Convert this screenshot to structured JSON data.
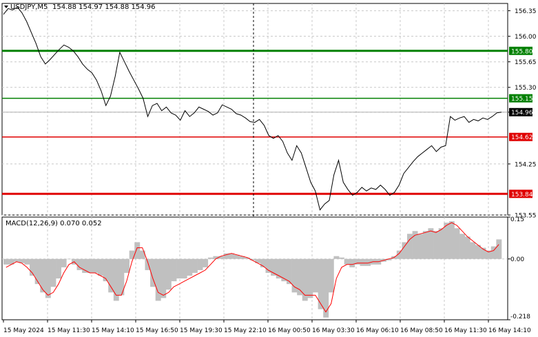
{
  "header": {
    "symbol_timeframe": "USDJPY,M5",
    "ohlc": "154.88 154.97 154.88 154.96"
  },
  "chart_data": [
    {
      "type": "line",
      "title": "USDJPY,M5",
      "ylim": [
        153.55,
        156.45
      ],
      "y_ticks": [
        "156.35",
        "156.00",
        "155.65",
        "155.30",
        "154.96",
        "154.25",
        "153.55"
      ],
      "x_ticks": [
        "15 May 2024",
        "15 May 11:30",
        "15 May 14:10",
        "15 May 16:50",
        "15 May 19:30",
        "15 May 22:10",
        "16 May 00:50",
        "16 May 03:30",
        "16 May 06:10",
        "16 May 08:50",
        "16 May 11:30",
        "16 May 14:10"
      ],
      "current_price": "154.96",
      "levels": [
        {
          "value": 155.8,
          "label": "155.80",
          "color": "#008000"
        },
        {
          "value": 155.15,
          "label": "155.15",
          "color": "#008000"
        },
        {
          "value": 154.62,
          "label": "154.62",
          "color": "#e00000"
        },
        {
          "value": 153.84,
          "label": "153.84",
          "color": "#e00000"
        }
      ],
      "series": [
        {
          "color": "#000000",
          "values": [
            156.3,
            156.38,
            156.36,
            156.4,
            156.32,
            156.2,
            156.05,
            155.9,
            155.72,
            155.62,
            155.68,
            155.75,
            155.82,
            155.88,
            155.85,
            155.8,
            155.72,
            155.62,
            155.55,
            155.5,
            155.4,
            155.25,
            155.05,
            155.18,
            155.45,
            155.78,
            155.65,
            155.52,
            155.4,
            155.28,
            155.15,
            154.9,
            155.05,
            155.08,
            154.98,
            155.03,
            154.95,
            154.92,
            154.85,
            154.98,
            154.9,
            154.95,
            155.03,
            155.0,
            154.97,
            154.92,
            154.95,
            155.06,
            155.03,
            155.0,
            154.94,
            154.92,
            154.88,
            154.83,
            154.82,
            154.86,
            154.78,
            154.64,
            154.6,
            154.64,
            154.56,
            154.4,
            154.3,
            154.5,
            154.4,
            154.2,
            154.0,
            153.88,
            153.62,
            153.7,
            153.75,
            154.1,
            154.3,
            154.0,
            153.9,
            153.82,
            153.86,
            153.93,
            153.88,
            153.92,
            153.9,
            153.96,
            153.9,
            153.82,
            153.86,
            153.96,
            154.12,
            154.2,
            154.28,
            154.35,
            154.4,
            154.45,
            154.5,
            154.42,
            154.48,
            154.5,
            154.9,
            154.85,
            154.88,
            154.9,
            154.82,
            154.86,
            154.84,
            154.88,
            154.86,
            154.9,
            154.95,
            154.96
          ]
        }
      ]
    },
    {
      "type": "bar",
      "title": "MACD(12,26,9) 0.070 0.052",
      "ylim": [
        -0.218,
        0.15
      ],
      "y_ticks": [
        "0.15",
        "0.00",
        "-0.218"
      ],
      "series": [
        {
          "name": "MACD",
          "color": "#c0c0c0",
          "values": [
            -0.02,
            -0.02,
            -0.01,
            -0.015,
            -0.02,
            -0.06,
            -0.09,
            -0.12,
            -0.14,
            -0.1,
            -0.07,
            -0.03,
            0.0,
            -0.02,
            -0.04,
            -0.05,
            -0.05,
            -0.05,
            -0.06,
            -0.08,
            -0.12,
            -0.15,
            -0.13,
            -0.05,
            0.03,
            0.06,
            0.03,
            -0.04,
            -0.1,
            -0.15,
            -0.14,
            -0.11,
            -0.08,
            -0.07,
            -0.07,
            -0.06,
            -0.05,
            -0.04,
            -0.03,
            0.005,
            0.01,
            0.01,
            0.02,
            0.02,
            0.015,
            0.01,
            0.005,
            -0.005,
            -0.015,
            -0.03,
            -0.05,
            -0.06,
            -0.07,
            -0.08,
            -0.09,
            -0.12,
            -0.13,
            -0.15,
            -0.14,
            -0.12,
            -0.18,
            -0.21,
            -0.12,
            0.01,
            0.005,
            -0.02,
            -0.03,
            -0.02,
            -0.025,
            -0.025,
            -0.02,
            -0.02,
            -0.01,
            -0.005,
            0.01,
            0.03,
            0.06,
            0.09,
            0.1,
            0.09,
            0.1,
            0.11,
            0.1,
            0.11,
            0.13,
            0.135,
            0.11,
            0.09,
            0.08,
            0.06,
            0.05,
            0.04,
            0.03,
            0.045,
            0.07
          ]
        },
        {
          "name": "Signal",
          "color": "#ff0000",
          "values": [
            -0.03,
            -0.02,
            -0.01,
            -0.015,
            -0.03,
            -0.05,
            -0.08,
            -0.11,
            -0.13,
            -0.12,
            -0.09,
            -0.05,
            -0.02,
            -0.01,
            -0.03,
            -0.04,
            -0.05,
            -0.05,
            -0.06,
            -0.07,
            -0.1,
            -0.13,
            -0.13,
            -0.08,
            -0.01,
            0.04,
            0.04,
            -0.01,
            -0.07,
            -0.12,
            -0.13,
            -0.12,
            -0.1,
            -0.09,
            -0.08,
            -0.07,
            -0.06,
            -0.05,
            -0.04,
            -0.02,
            0.0,
            0.01,
            0.015,
            0.02,
            0.015,
            0.01,
            0.005,
            -0.005,
            -0.015,
            -0.025,
            -0.04,
            -0.05,
            -0.06,
            -0.07,
            -0.08,
            -0.1,
            -0.11,
            -0.13,
            -0.13,
            -0.13,
            -0.16,
            -0.19,
            -0.16,
            -0.07,
            -0.03,
            -0.02,
            -0.02,
            -0.015,
            -0.015,
            -0.015,
            -0.01,
            -0.01,
            -0.005,
            0.0,
            0.005,
            0.02,
            0.045,
            0.07,
            0.085,
            0.09,
            0.095,
            0.1,
            0.095,
            0.105,
            0.12,
            0.13,
            0.12,
            0.1,
            0.08,
            0.065,
            0.05,
            0.035,
            0.025,
            0.03,
            0.052
          ]
        }
      ]
    }
  ]
}
